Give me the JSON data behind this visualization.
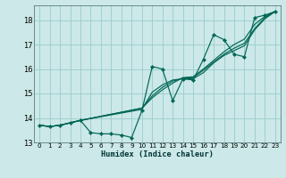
{
  "xlabel": "Humidex (Indice chaleur)",
  "bg_color": "#cce8e8",
  "grid_color": "#99cccc",
  "line_color": "#006655",
  "xlim": [
    -0.5,
    23.5
  ],
  "ylim": [
    13.0,
    18.6
  ],
  "yticks": [
    13,
    14,
    15,
    16,
    17,
    18
  ],
  "xticks": [
    0,
    1,
    2,
    3,
    4,
    5,
    6,
    7,
    8,
    9,
    10,
    11,
    12,
    13,
    14,
    15,
    16,
    17,
    18,
    19,
    20,
    21,
    22,
    23
  ],
  "series1": [
    [
      0,
      13.7
    ],
    [
      1,
      13.65
    ],
    [
      2,
      13.7
    ],
    [
      3,
      13.8
    ],
    [
      4,
      13.9
    ],
    [
      5,
      13.4
    ],
    [
      6,
      13.35
    ],
    [
      7,
      13.35
    ],
    [
      8,
      13.3
    ],
    [
      9,
      13.2
    ],
    [
      10,
      14.3
    ],
    [
      11,
      16.1
    ],
    [
      12,
      16.0
    ],
    [
      13,
      14.7
    ],
    [
      14,
      15.6
    ],
    [
      15,
      15.55
    ],
    [
      16,
      16.4
    ],
    [
      17,
      17.4
    ],
    [
      18,
      17.2
    ],
    [
      19,
      16.6
    ],
    [
      20,
      16.5
    ],
    [
      21,
      18.1
    ],
    [
      22,
      18.2
    ],
    [
      23,
      18.35
    ]
  ],
  "series2": [
    [
      0,
      13.7
    ],
    [
      1,
      13.65
    ],
    [
      2,
      13.7
    ],
    [
      3,
      13.8
    ],
    [
      4,
      13.9
    ],
    [
      10,
      14.35
    ],
    [
      11,
      15.05
    ],
    [
      12,
      15.35
    ],
    [
      13,
      15.55
    ],
    [
      14,
      15.6
    ],
    [
      15,
      15.6
    ],
    [
      16,
      15.85
    ],
    [
      17,
      16.25
    ],
    [
      18,
      16.55
    ],
    [
      19,
      16.75
    ],
    [
      20,
      16.95
    ],
    [
      21,
      17.6
    ],
    [
      22,
      18.05
    ],
    [
      23,
      18.35
    ]
  ],
  "series3": [
    [
      0,
      13.7
    ],
    [
      1,
      13.65
    ],
    [
      2,
      13.7
    ],
    [
      3,
      13.8
    ],
    [
      4,
      13.9
    ],
    [
      10,
      14.4
    ],
    [
      11,
      14.9
    ],
    [
      12,
      15.25
    ],
    [
      13,
      15.5
    ],
    [
      14,
      15.62
    ],
    [
      15,
      15.65
    ],
    [
      16,
      15.95
    ],
    [
      17,
      16.28
    ],
    [
      18,
      16.6
    ],
    [
      19,
      16.85
    ],
    [
      20,
      17.05
    ],
    [
      21,
      17.65
    ],
    [
      22,
      18.1
    ],
    [
      23,
      18.35
    ]
  ],
  "series4": [
    [
      0,
      13.7
    ],
    [
      1,
      13.65
    ],
    [
      2,
      13.7
    ],
    [
      3,
      13.8
    ],
    [
      4,
      13.9
    ],
    [
      10,
      14.4
    ],
    [
      11,
      14.82
    ],
    [
      12,
      15.15
    ],
    [
      13,
      15.42
    ],
    [
      14,
      15.65
    ],
    [
      15,
      15.68
    ],
    [
      16,
      16.0
    ],
    [
      17,
      16.35
    ],
    [
      18,
      16.7
    ],
    [
      19,
      17.0
    ],
    [
      20,
      17.22
    ],
    [
      21,
      17.82
    ],
    [
      22,
      18.15
    ],
    [
      23,
      18.35
    ]
  ]
}
